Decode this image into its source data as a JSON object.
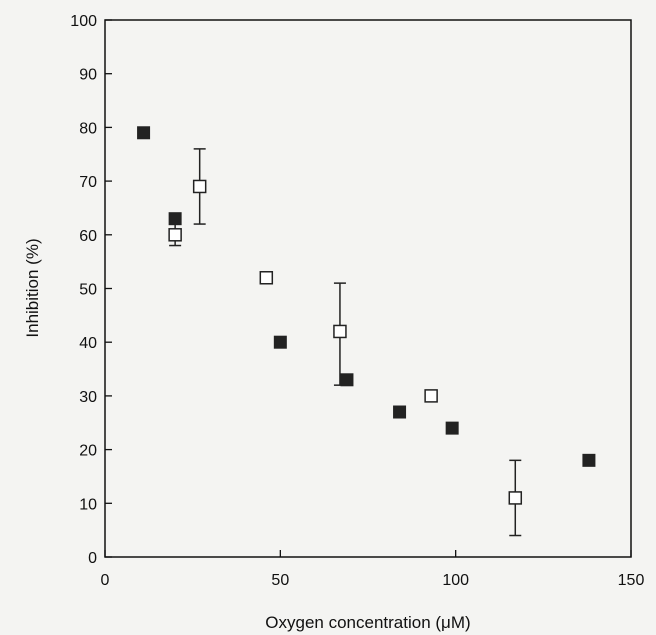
{
  "chart_data": {
    "type": "scatter",
    "title": "",
    "xlabel": "Oxygen concentration (μM)",
    "ylabel": "Inhibition (%)",
    "xlim": [
      0,
      150
    ],
    "ylim": [
      0,
      100
    ],
    "xticks": [
      0,
      50,
      100,
      150
    ],
    "yticks": [
      0,
      10,
      20,
      30,
      40,
      50,
      60,
      70,
      80,
      90,
      100
    ],
    "grid": false,
    "series": [
      {
        "marker": "filled-square",
        "color": "#222222",
        "points": [
          {
            "x": 11,
            "y": 79
          },
          {
            "x": 20,
            "y": 63
          },
          {
            "x": 50,
            "y": 40
          },
          {
            "x": 69,
            "y": 33
          },
          {
            "x": 84,
            "y": 27
          },
          {
            "x": 99,
            "y": 24
          },
          {
            "x": 138,
            "y": 18
          }
        ]
      },
      {
        "marker": "open-square",
        "color": "#222222",
        "points": [
          {
            "x": 20,
            "y": 60,
            "err_low": 58,
            "err_high": 62
          },
          {
            "x": 27,
            "y": 69,
            "err_low": 62,
            "err_high": 76
          },
          {
            "x": 46,
            "y": 52
          },
          {
            "x": 67,
            "y": 42,
            "err_low": 32,
            "err_high": 51
          },
          {
            "x": 93,
            "y": 30
          },
          {
            "x": 117,
            "y": 11,
            "err_low": 4,
            "err_high": 18
          }
        ]
      }
    ]
  }
}
